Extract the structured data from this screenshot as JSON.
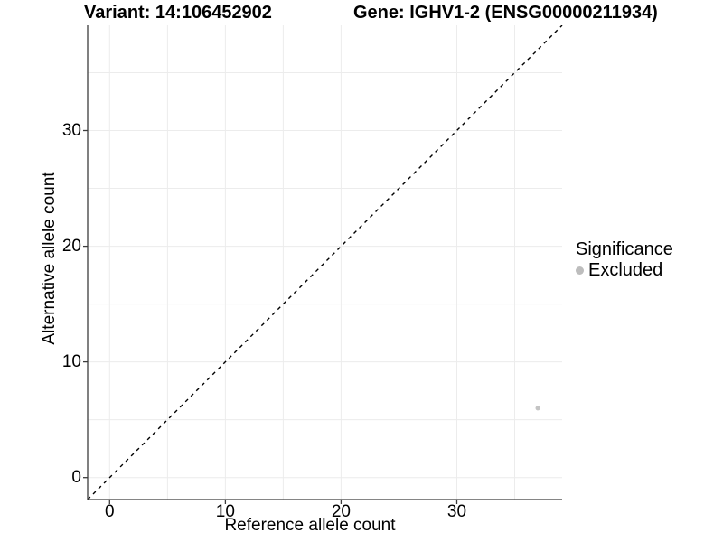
{
  "figure": {
    "titles": {
      "variant": "Variant: 14:106452902",
      "gene": "Gene: IGHV1-2 (ENSG00000211934)"
    }
  },
  "axes": {
    "x": {
      "label": "Reference allele count",
      "tick_labels": [
        "0",
        "10",
        "20",
        "30"
      ]
    },
    "y": {
      "label": "Alternative allele count",
      "tick_labels": [
        "0",
        "10",
        "20",
        "30"
      ]
    }
  },
  "legend": {
    "title": "Significance",
    "items": [
      {
        "label": "Excluded",
        "color": "#bdbdbd"
      }
    ]
  },
  "chart_data": {
    "type": "scatter",
    "title_left": "Variant: 14:106452902",
    "title_right": "Gene: IGHV1-2 (ENSG00000211934)",
    "xlabel": "Reference allele count",
    "ylabel": "Alternative allele count",
    "xlim": [
      -1.9,
      39.1
    ],
    "ylim": [
      -1.9,
      39.1
    ],
    "x_ticks": [
      0,
      10,
      20,
      30
    ],
    "y_ticks": [
      0,
      10,
      20,
      30
    ],
    "minor_gridlines": [
      5,
      15,
      25,
      35
    ],
    "grid": true,
    "legend_position": "right",
    "series": [
      {
        "name": "Excluded",
        "color": "#c4c4c4",
        "points": [
          {
            "x": 37,
            "y": 6
          }
        ]
      }
    ],
    "reference_line": {
      "type": "identity",
      "equation": "y = x",
      "style": "dashed",
      "color": "#000000"
    },
    "colors": {
      "background": "#ffffff",
      "gridline": "#ececec",
      "axis_line": "#3c3c3c",
      "point": "#c4c4c4",
      "legend_key": "#bdbdbd"
    }
  }
}
